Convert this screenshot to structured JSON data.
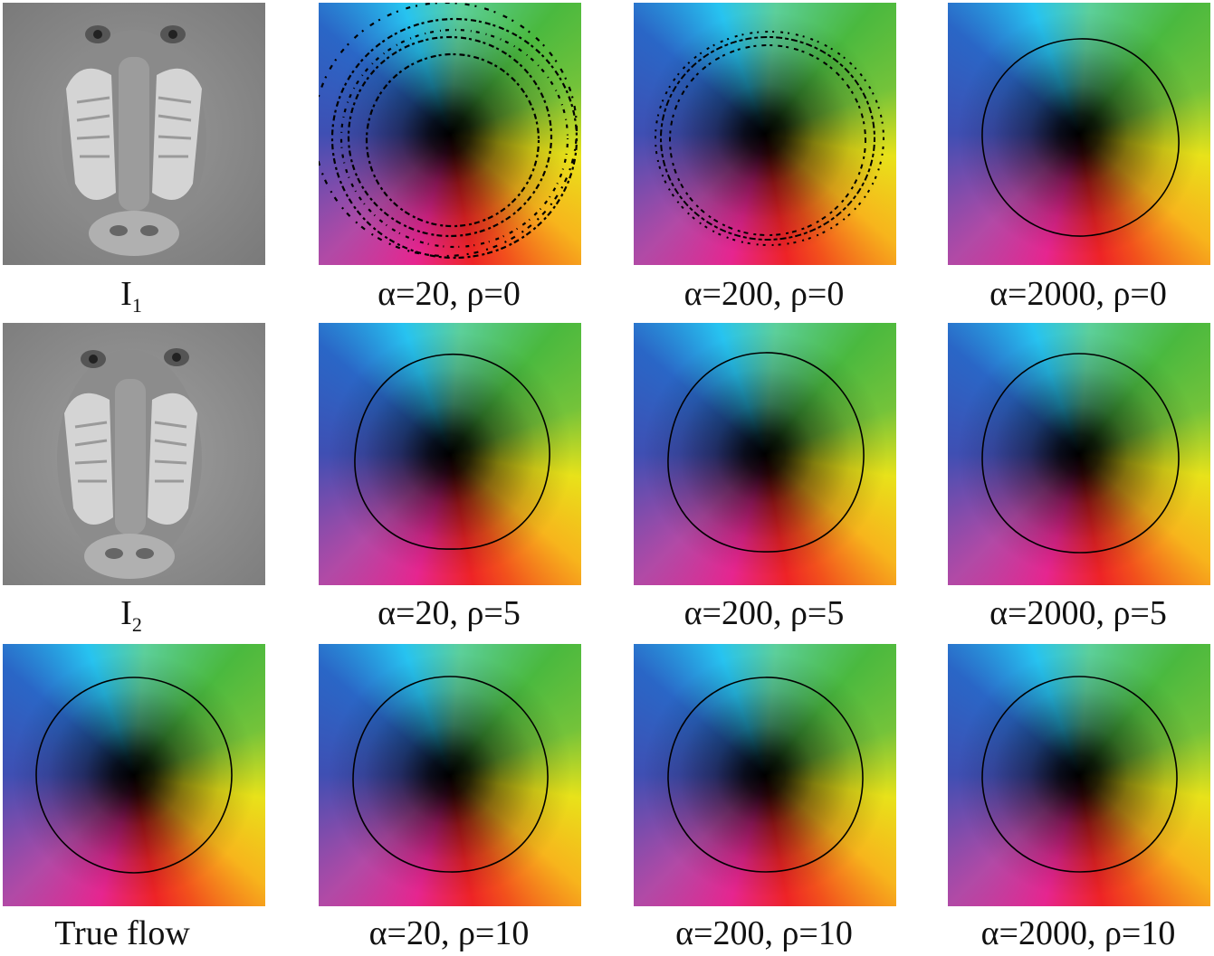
{
  "captions": {
    "r1c1_main": "I",
    "r1c1_sub": "1",
    "r1c2": "α=20, ρ=0",
    "r1c3": "α=200, ρ=0",
    "r1c4": "α=2000, ρ=0",
    "r2c1_main": "I",
    "r2c1_sub": "2",
    "r2c2": "α=20, ρ=5",
    "r2c3": "α=200, ρ=5",
    "r2c4": "α=2000, ρ=5",
    "r3c1": "True flow",
    "r3c2": "α=20, ρ=10",
    "r3c3": "α=200, ρ=10",
    "r3c4": "α=2000, ρ=10"
  },
  "colors": {
    "background": "#ffffff",
    "contour": "#000000",
    "gray_base": "#8e8e8e"
  }
}
